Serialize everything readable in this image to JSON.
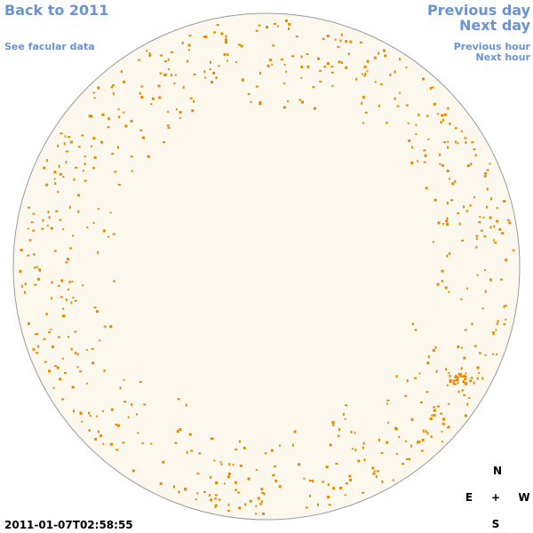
{
  "nav": {
    "back": "Back to 2011",
    "facular": "See facular data",
    "previous_day": "Previous day",
    "next_day": "Next day",
    "previous_hour": "Previous hour",
    "next_hour": "Next hour"
  },
  "timestamp": "2011-01-07T02:58:55",
  "compass": {
    "north": "N",
    "east": "E",
    "center": "+",
    "west": "W",
    "south": "S"
  }
}
